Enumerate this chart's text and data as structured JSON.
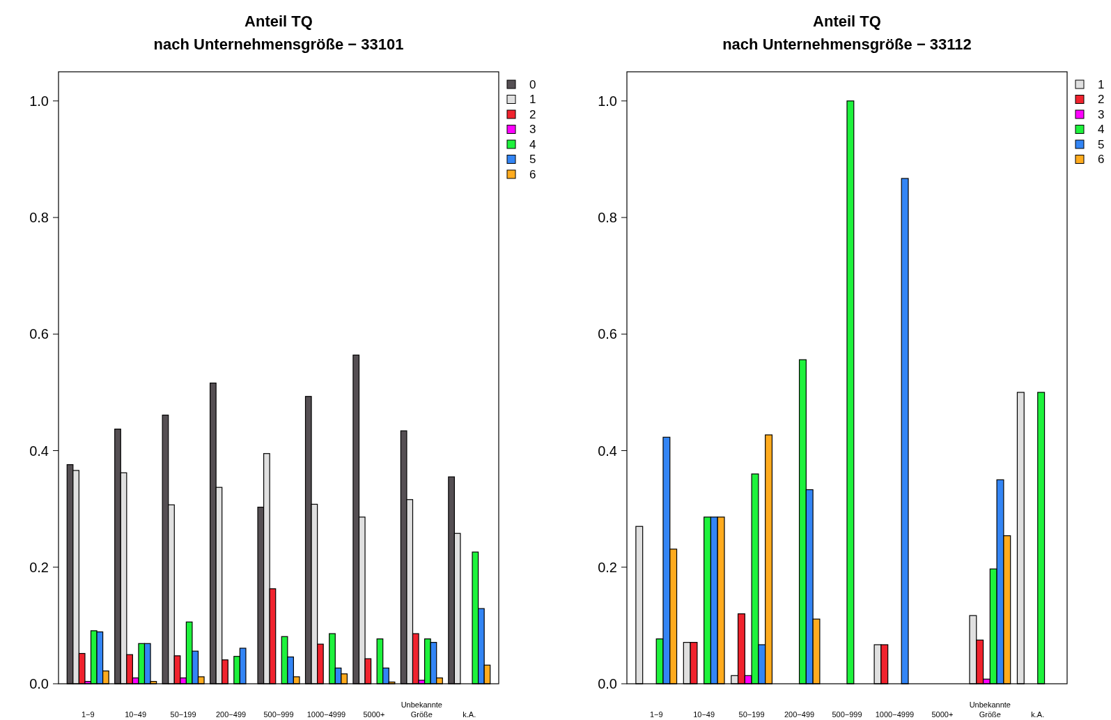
{
  "chart_data": [
    {
      "type": "bar",
      "title": "Anteil TQ\nnach Unternehmensgröße − 33101",
      "categories": [
        "1−9",
        "10−49",
        "50−199",
        "200−499",
        "500−999",
        "1000−4999",
        "5000+",
        "Unbekannte\nGröße",
        "k.A."
      ],
      "ylim": [
        0,
        1.05
      ],
      "yticks": [
        {
          "value": 0,
          "label": "0.0"
        },
        {
          "value": 0.2,
          "label": "0.2"
        },
        {
          "value": 0.4,
          "label": "0.4"
        },
        {
          "value": 0.6,
          "label": "0.6"
        },
        {
          "value": 0.8,
          "label": "0.8"
        },
        {
          "value": 1,
          "label": "1.0"
        }
      ],
      "legend": "top right",
      "grid": false,
      "series": [
        {
          "name": "0",
          "color": "#554f53",
          "values": [
            0.376,
            0.437,
            0.461,
            0.516,
            0.303,
            0.493,
            0.564,
            0.434,
            0.355
          ]
        },
        {
          "name": "1",
          "color": "#e0e0e0",
          "values": [
            0.366,
            0.362,
            0.307,
            0.337,
            0.395,
            0.308,
            0.286,
            0.316,
            0.258
          ]
        },
        {
          "name": "2",
          "color": "#f0232e",
          "values": [
            0.052,
            0.05,
            0.048,
            0.041,
            0.163,
            0.068,
            0.043,
            0.086,
            0
          ]
        },
        {
          "name": "3",
          "color": "#ff00ff",
          "values": [
            0.004,
            0.01,
            0.01,
            0,
            0,
            0,
            0,
            0.006,
            0
          ]
        },
        {
          "name": "4",
          "color": "#1ef23c",
          "values": [
            0.091,
            0.069,
            0.106,
            0.047,
            0.081,
            0.086,
            0.077,
            0.077,
            0.226
          ]
        },
        {
          "name": "5",
          "color": "#3385f5",
          "values": [
            0.089,
            0.069,
            0.056,
            0.061,
            0.046,
            0.027,
            0.027,
            0.071,
            0.129
          ]
        },
        {
          "name": "6",
          "color": "#ffab1e",
          "values": [
            0.022,
            0.004,
            0.012,
            0,
            0.012,
            0.017,
            0.003,
            0.01,
            0.032
          ]
        }
      ]
    },
    {
      "type": "bar",
      "title": "Anteil TQ\nnach Unternehmensgröße − 33112",
      "categories": [
        "1−9",
        "10−49",
        "50−199",
        "200−499",
        "500−999",
        "1000−4999",
        "5000+",
        "Unbekannte\nGröße",
        "k.A."
      ],
      "ylim": [
        0,
        1.05
      ],
      "yticks": [
        {
          "value": 0,
          "label": "0.0"
        },
        {
          "value": 0.2,
          "label": "0.2"
        },
        {
          "value": 0.4,
          "label": "0.4"
        },
        {
          "value": 0.6,
          "label": "0.6"
        },
        {
          "value": 0.8,
          "label": "0.8"
        },
        {
          "value": 1,
          "label": "1.0"
        }
      ],
      "legend": "top right",
      "grid": false,
      "series": [
        {
          "name": "1",
          "color": "#e0e0e0",
          "values": [
            0.27,
            0.071,
            0.014,
            0,
            0,
            0.067,
            null,
            0.117,
            0.5
          ]
        },
        {
          "name": "2",
          "color": "#f0232e",
          "values": [
            0,
            0.071,
            0.12,
            0,
            0,
            0.067,
            null,
            0.075,
            0
          ]
        },
        {
          "name": "3",
          "color": "#ff00ff",
          "values": [
            0,
            0,
            0.014,
            0,
            0,
            0,
            null,
            0.008,
            0
          ]
        },
        {
          "name": "4",
          "color": "#1ef23c",
          "values": [
            0.077,
            0.286,
            0.36,
            0.556,
            1,
            0,
            null,
            0.197,
            0.5
          ]
        },
        {
          "name": "5",
          "color": "#3385f5",
          "values": [
            0.423,
            0.286,
            0.067,
            0.333,
            0,
            0.867,
            null,
            0.35,
            0
          ]
        },
        {
          "name": "6",
          "color": "#ffab1e",
          "values": [
            0.231,
            0.286,
            0.427,
            0.111,
            0,
            0,
            null,
            0.254,
            0
          ]
        }
      ]
    }
  ]
}
